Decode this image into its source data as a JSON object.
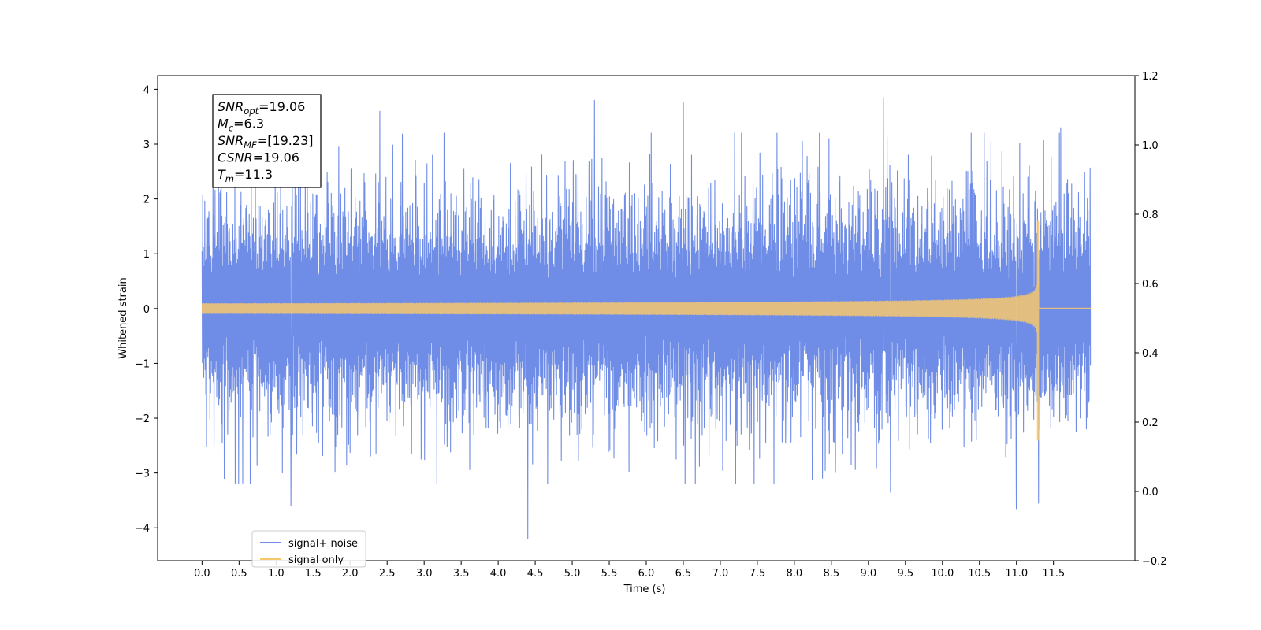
{
  "chart_data": {
    "type": "line",
    "xlabel": "Time (s)",
    "ylabel": "Whitened strain",
    "xlim": [
      -0.6,
      12.6
    ],
    "ylim": [
      -4.6,
      4.25
    ],
    "ylim_right": [
      -0.2,
      1.2
    ],
    "x_ticks": [
      "0.0",
      "0.5",
      "1.0",
      "1.5",
      "2.0",
      "2.5",
      "3.0",
      "3.5",
      "4.0",
      "4.5",
      "5.0",
      "5.5",
      "6.0",
      "6.5",
      "7.0",
      "7.5",
      "8.0",
      "8.5",
      "9.0",
      "9.5",
      "10.0",
      "10.5",
      "11.0",
      "11.5"
    ],
    "y_ticks": [
      "4",
      "3",
      "2",
      "1",
      "0",
      "−1",
      "−2",
      "−3",
      "−4"
    ],
    "y_ticks_right": [
      "1.2",
      "1.0",
      "0.8",
      "0.6",
      "0.4",
      "0.2",
      "0.0",
      "−0.2"
    ],
    "grid": false,
    "legend_position": "lower-left",
    "series": [
      {
        "name": "signal+ noise",
        "color": "#6f8de6",
        "x_range": [
          0.0,
          12.0
        ],
        "noise_amplitude": 1.5,
        "peak_values": [
          {
            "x": 0.3,
            "y": -3.1
          },
          {
            "x": 0.45,
            "y": -3.2
          },
          {
            "x": 1.2,
            "y": -3.6
          },
          {
            "x": 2.4,
            "y": 3.6
          },
          {
            "x": 4.4,
            "y": -4.2
          },
          {
            "x": 5.3,
            "y": 3.8
          },
          {
            "x": 6.5,
            "y": 3.75
          },
          {
            "x": 9.2,
            "y": 3.85
          },
          {
            "x": 9.3,
            "y": -3.35
          },
          {
            "x": 11.0,
            "y": -3.65
          },
          {
            "x": 11.3,
            "y": -3.55
          },
          {
            "x": 11.6,
            "y": 3.3
          }
        ]
      },
      {
        "name": "signal only",
        "color": "#f7c76d",
        "x_range": [
          0.0,
          12.0
        ],
        "merger_time": 11.3,
        "start_amplitude": 0.09,
        "peak_amplitude_positive": 1.6,
        "peak_amplitude_negative": -2.4
      }
    ],
    "annotation": {
      "lines": [
        {
          "name": "SNR",
          "sub": "opt",
          "value": "=19.06"
        },
        {
          "name": "M",
          "sub": "c",
          "value": "=6.3"
        },
        {
          "name": "SNR",
          "sub": "MF",
          "value": "=[19.23]"
        },
        {
          "name": "CSNR",
          "sub": "",
          "value": "=19.06"
        },
        {
          "name": "T",
          "sub": "m",
          "value": "=11.3"
        }
      ]
    }
  }
}
